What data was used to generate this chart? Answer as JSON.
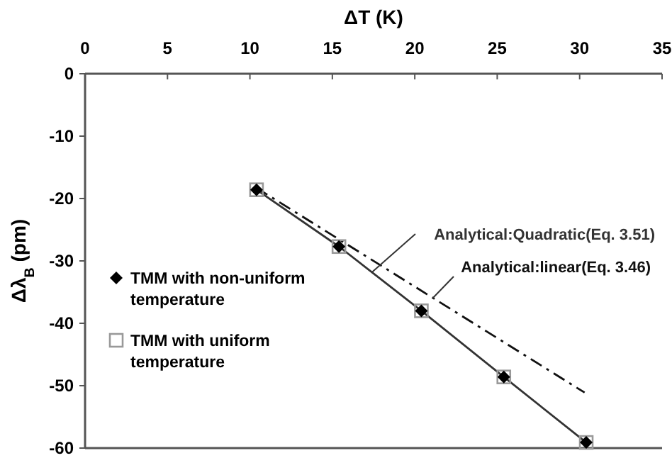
{
  "chart_data": {
    "type": "scatter",
    "xlabel": "ΔT (K)",
    "ylabel": "Δλ$_{B}$ (pm)",
    "xlim": [
      0,
      35
    ],
    "xticks": [
      0,
      5,
      10,
      15,
      20,
      25,
      30,
      35
    ],
    "ylim": [
      -60,
      0
    ],
    "yticks": [
      -60,
      -50,
      -40,
      -30,
      -20,
      -10,
      0
    ],
    "grid": false,
    "legend": "left",
    "series": [
      {
        "name": "Analytical:Quadratic(Eq. 3.51)",
        "type": "line",
        "line_style": "solid",
        "color": "#333333",
        "x": [
          10.4,
          15.4,
          20.4,
          25.4,
          30.4
        ],
        "values": [
          -18.6,
          -27.7,
          -38.0,
          -48.6,
          -59.1
        ]
      },
      {
        "name": "Analytical:linear(Eq. 3.46)",
        "type": "line",
        "line_style": "dashed",
        "color": "#111111",
        "x": [
          10.4,
          30.3
        ],
        "values": [
          -18.3,
          -51.1
        ]
      },
      {
        "name": "TMM with non-uniform temperature",
        "marker": "diamond",
        "color": "#000000",
        "x": [
          10.4,
          15.4,
          20.4,
          25.4,
          30.4
        ],
        "values": [
          -18.6,
          -27.7,
          -38.0,
          -48.6,
          -59.1
        ]
      },
      {
        "name": "TMM with uniform temperature",
        "marker": "square",
        "color": "#999999",
        "x": [
          10.4,
          15.4,
          20.4,
          25.4,
          30.4
        ],
        "values": [
          -18.6,
          -27.7,
          -38.0,
          -48.6,
          -59.1
        ]
      }
    ]
  }
}
